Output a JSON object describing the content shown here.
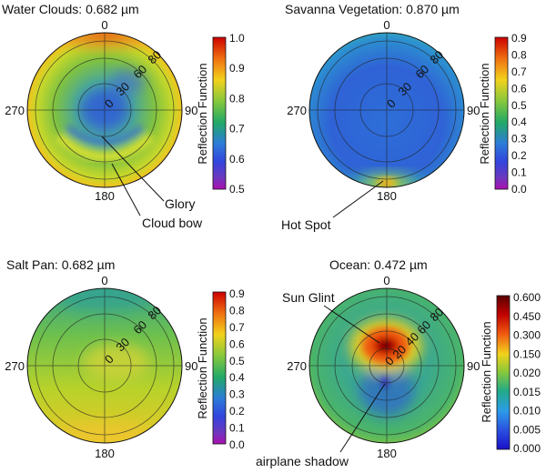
{
  "panels": [
    {
      "id": "water-clouds",
      "title": "Water Clouds: 0.682 µm",
      "directions": [
        "0",
        "90",
        "180",
        "270"
      ],
      "ring_labels": [
        "0",
        "30",
        "60",
        "80"
      ],
      "colorbar": {
        "label": "Reflection Function",
        "ticks": [
          "1.0",
          "0.9",
          "0.8",
          "0.7",
          "0.6",
          "0.5"
        ],
        "scale": "rainbow-red-to-purple",
        "colors": [
          "#cc0000",
          "#f07010",
          "#f2d21c",
          "#86c83c",
          "#22aa66",
          "#2c7cd8",
          "#3344dd",
          "#6a38c0",
          "#aa10b0"
        ]
      },
      "annotations": [
        "Glory",
        "Cloud bow"
      ]
    },
    {
      "id": "savanna-vegetation",
      "title": "Savanna Vegetation: 0.870 µm",
      "directions": [
        "0",
        "90",
        "180",
        "270"
      ],
      "ring_labels": [
        "0",
        "30",
        "60",
        "80"
      ],
      "colorbar": {
        "label": "Reflection Function",
        "ticks": [
          "0.9",
          "0.8",
          "0.7",
          "0.6",
          "0.5",
          "0.4",
          "0.3",
          "0.2",
          "0.1",
          "0.0"
        ],
        "scale": "rainbow-red-to-purple",
        "colors": [
          "#cc0000",
          "#f07010",
          "#f2d21c",
          "#86c83c",
          "#22aa66",
          "#2c7cd8",
          "#3344dd",
          "#6a38c0",
          "#aa10b0"
        ]
      },
      "annotations": [
        "Hot Spot"
      ]
    },
    {
      "id": "salt-pan",
      "title": "Salt Pan: 0.682 µm",
      "directions": [
        "0",
        "90",
        "180",
        "270"
      ],
      "ring_labels": [
        "0",
        "30",
        "60",
        "80"
      ],
      "colorbar": {
        "label": "Reflection Function",
        "ticks": [
          "0.9",
          "0.8",
          "0.7",
          "0.6",
          "0.5",
          "0.4",
          "0.3",
          "0.2",
          "0.1",
          "0.0"
        ],
        "scale": "rainbow-red-to-purple",
        "colors": [
          "#cc0000",
          "#f07010",
          "#f2d21c",
          "#86c83c",
          "#22aa66",
          "#2c7cd8",
          "#3344dd",
          "#6a38c0",
          "#aa10b0"
        ]
      },
      "annotations": []
    },
    {
      "id": "ocean",
      "title": "Ocean: 0.472 µm",
      "directions": [
        "0",
        "90",
        "180",
        "270"
      ],
      "ring_labels": [
        "0",
        "20",
        "40",
        "60",
        "80"
      ],
      "colorbar": {
        "label": "Reflection Function",
        "ticks": [
          "0.600",
          "0.450",
          "0.300",
          "0.150",
          "0.020",
          "0.015",
          "0.010",
          "0.005",
          "0.000"
        ],
        "scale": "dark-red-to-blue",
        "colors": [
          "#5a0000",
          "#c00000",
          "#f05a10",
          "#f2d21c",
          "#86c83c",
          "#22aa88",
          "#2c9ce8",
          "#2a4ee0",
          "#1a10c8"
        ]
      },
      "annotations": [
        "Sun Glint",
        "airplane shadow"
      ]
    }
  ]
}
